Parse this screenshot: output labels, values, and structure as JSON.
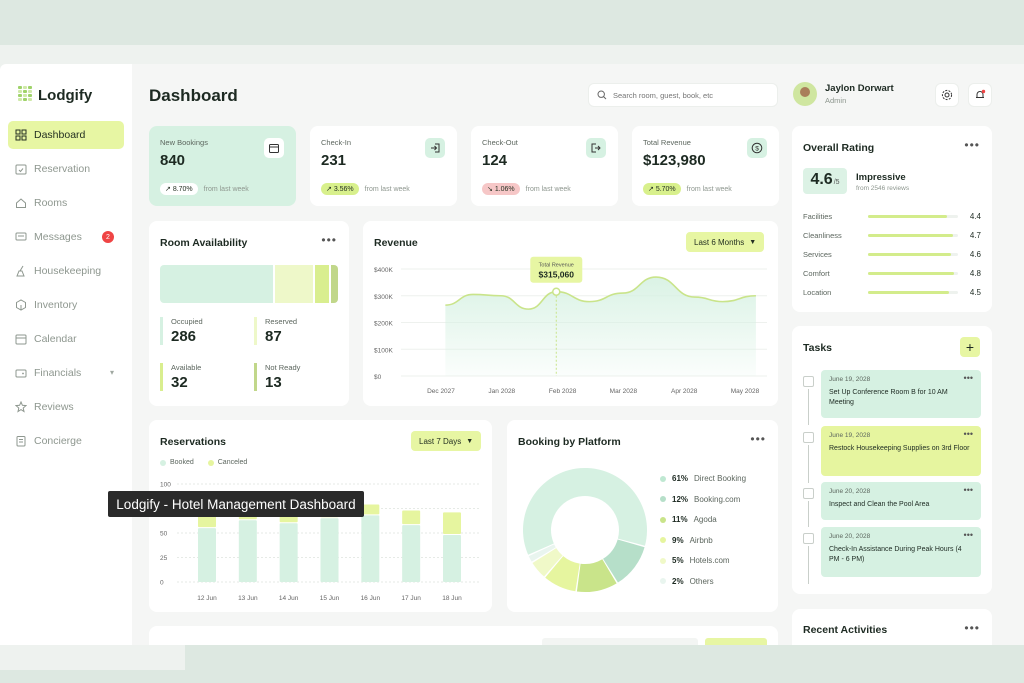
{
  "app": {
    "name": "Lodgify"
  },
  "page_title": "Dashboard",
  "search": {
    "placeholder": "Search room, guest, book, etc"
  },
  "user": {
    "name": "Jaylon Dorwart",
    "role": "Admin"
  },
  "sidebar": {
    "items": [
      {
        "label": "Dashboard",
        "icon": "grid-icon",
        "active": true
      },
      {
        "label": "Reservation",
        "icon": "calendar-check-icon"
      },
      {
        "label": "Rooms",
        "icon": "home-icon"
      },
      {
        "label": "Messages",
        "icon": "message-icon",
        "badge": "2"
      },
      {
        "label": "Housekeeping",
        "icon": "broom-icon"
      },
      {
        "label": "Inventory",
        "icon": "box-icon"
      },
      {
        "label": "Calendar",
        "icon": "calendar-icon"
      },
      {
        "label": "Financials",
        "icon": "wallet-icon",
        "has_chevron": true
      },
      {
        "label": "Reviews",
        "icon": "star-icon"
      },
      {
        "label": "Concierge",
        "icon": "concierge-icon"
      }
    ]
  },
  "stats": [
    {
      "label": "New Bookings",
      "value": "840",
      "change": "8.70%",
      "trend": "up",
      "foot": "from last week",
      "icon": "calendar-icon"
    },
    {
      "label": "Check-In",
      "value": "231",
      "change": "3.56%",
      "trend": "up",
      "foot": "from last week",
      "icon": "login-icon"
    },
    {
      "label": "Check-Out",
      "value": "124",
      "change": "1.06%",
      "trend": "down",
      "foot": "from last week",
      "icon": "logout-icon"
    },
    {
      "label": "Total Revenue",
      "value": "$123,980",
      "change": "5.70%",
      "trend": "up",
      "foot": "from last week",
      "icon": "dollar-icon"
    }
  ],
  "room_availability": {
    "title": "Room Availability",
    "occupied": {
      "label": "Occupied",
      "value": "286"
    },
    "reserved": {
      "label": "Reserved",
      "value": "87"
    },
    "available": {
      "label": "Available",
      "value": "32"
    },
    "not_ready": {
      "label": "Not Ready",
      "value": "13"
    }
  },
  "revenue": {
    "title": "Revenue",
    "range": "Last 6 Months",
    "tooltip_label": "Total Revenue",
    "tooltip_value": "$315,060"
  },
  "reservations": {
    "title": "Reservations",
    "range": "Last 7 Days",
    "legend_booked": "Booked",
    "legend_canceled": "Canceled"
  },
  "booking_platform": {
    "title": "Booking by Platform",
    "items": [
      {
        "pct": "61%",
        "name": "Direct Booking",
        "color": "#d6f1e2"
      },
      {
        "pct": "12%",
        "name": "Booking.com",
        "color": "#b6dfc9"
      },
      {
        "pct": "11%",
        "name": "Agoda",
        "color": "#c9e48a"
      },
      {
        "pct": "9%",
        "name": "Airbnb",
        "color": "#e6f59f"
      },
      {
        "pct": "5%",
        "name": "Hotels.com",
        "color": "#f0f9c8"
      },
      {
        "pct": "2%",
        "name": "Others",
        "color": "#e9f5ef"
      }
    ]
  },
  "overall_rating": {
    "title": "Overall Rating",
    "score": "4.6",
    "out_of": "/5",
    "verdict": "Impressive",
    "reviews": "from 2546 reviews",
    "rows": [
      {
        "label": "Facilities",
        "value": "4.4",
        "fraction": 0.88
      },
      {
        "label": "Cleanliness",
        "value": "4.7",
        "fraction": 0.94
      },
      {
        "label": "Services",
        "value": "4.6",
        "fraction": 0.92
      },
      {
        "label": "Comfort",
        "value": "4.8",
        "fraction": 0.96
      },
      {
        "label": "Location",
        "value": "4.5",
        "fraction": 0.9
      }
    ]
  },
  "tasks": {
    "title": "Tasks",
    "items": [
      {
        "date": "June 19, 2028",
        "text": "Set Up Conference Room B for 10 AM Meeting",
        "color": "#d6f1e2"
      },
      {
        "date": "June 19, 2028",
        "text": "Restock Housekeeping Supplies on 3rd Floor",
        "color": "#e6f59f"
      },
      {
        "date": "June 20, 2028",
        "text": "Inspect and Clean the Pool Area",
        "color": "#d6f1e2"
      },
      {
        "date": "June 20, 2028",
        "text": "Check-In Assistance During Peak Hours (4 PM - 6 PM)",
        "color": "#d6f1e2"
      }
    ]
  },
  "recent_activities": {
    "title": "Recent Activities"
  },
  "caption": "Lodgify - Hotel Management Dashboard",
  "colors": {
    "accent": "#e7f6a3",
    "mint": "#d6f1e2",
    "lime": "#c9e48a",
    "up": "#d8f08c",
    "down": "#f6c7c7"
  },
  "chart_data": [
    {
      "type": "area",
      "title": "Revenue",
      "categories": [
        "Dec 2027",
        "Jan 2028",
        "Feb 2028",
        "Mar 2028",
        "Apr 2028",
        "May 2028"
      ],
      "y_ticks": [
        "$400K",
        "$300K",
        "$200K",
        "$100K",
        "$0"
      ],
      "ylim": [
        0,
        400000
      ],
      "points": [
        [
          0,
          265000
        ],
        [
          0.5,
          305000
        ],
        [
          1.0,
          300000
        ],
        [
          1.5,
          250000
        ],
        [
          2.0,
          315060
        ],
        [
          2.6,
          278000
        ],
        [
          3.2,
          310000
        ],
        [
          3.8,
          370000
        ],
        [
          4.5,
          295000
        ],
        [
          5.0,
          278000
        ],
        [
          5.6,
          300000
        ]
      ],
      "highlight": {
        "x": 2.0,
        "value": 315060
      }
    },
    {
      "type": "bar",
      "title": "Reservations",
      "categories": [
        "12 Jun",
        "13 Jun",
        "14 Jun",
        "15 Jun",
        "16 Jun",
        "17 Jun",
        "18 Jun"
      ],
      "y_ticks": [
        "100",
        "75",
        "50",
        "25",
        "0"
      ],
      "ylim": [
        0,
        100
      ],
      "series": [
        {
          "name": "Booked",
          "values": [
            55,
            63,
            60,
            65,
            68,
            58,
            48
          ],
          "color": "#d6f1e2"
        },
        {
          "name": "Canceled",
          "values": [
            15,
            12,
            14,
            12,
            10,
            14,
            22
          ],
          "color": "#e6f59f"
        }
      ]
    },
    {
      "type": "pie",
      "title": "Booking by Platform",
      "labels": [
        "Direct Booking",
        "Booking.com",
        "Agoda",
        "Airbnb",
        "Hotels.com",
        "Others"
      ],
      "values": [
        61,
        12,
        11,
        9,
        5,
        2
      ]
    }
  ]
}
